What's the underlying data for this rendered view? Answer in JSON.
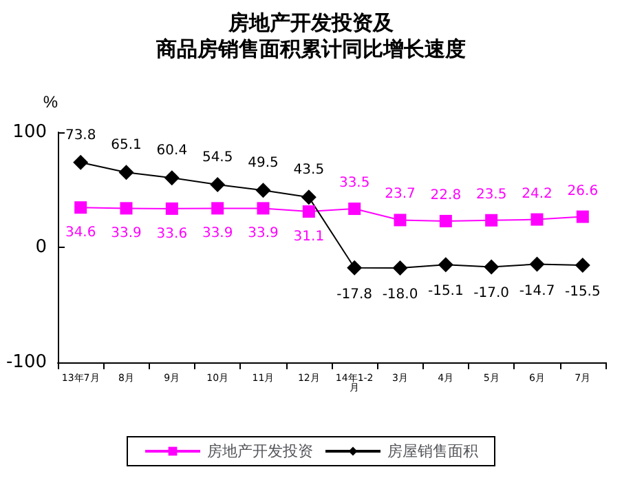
{
  "chart_data": {
    "type": "line",
    "title": "房地产开发投资及",
    "subtitle": "商品房销售面积累计同比增长速度",
    "ylabel": "%",
    "categories": [
      "13年7月",
      "8月",
      "9月",
      "10月",
      "11月",
      "12月",
      "14年1-2月",
      "3月",
      "4月",
      "5月",
      "6月",
      "7月"
    ],
    "series": [
      {
        "name": "房地产开发投资",
        "color": "#ff00ff",
        "marker": "square",
        "values": [
          34.6,
          33.9,
          33.6,
          33.9,
          33.9,
          31.1,
          33.5,
          23.7,
          22.8,
          23.5,
          24.2,
          26.6
        ],
        "value_labels": [
          "34.6",
          "33.9",
          "33.6",
          "33.9",
          "33.9",
          "31.1",
          "33.5",
          "23.7",
          "22.8",
          "23.5",
          "24.2",
          "26.6"
        ]
      },
      {
        "name": "房屋销售面积",
        "color": "#000000",
        "marker": "diamond",
        "values": [
          73.8,
          65.1,
          60.4,
          54.5,
          49.5,
          43.5,
          -17.8,
          -18.0,
          -15.1,
          -17.0,
          -14.7,
          -15.5
        ],
        "value_labels": [
          "73.8",
          "65.1",
          "60.4",
          "54.5",
          "49.5",
          "43.5",
          "-17.8",
          "-18.0",
          "-15.1",
          "-17.0",
          "-14.7",
          "-15.5"
        ]
      }
    ],
    "ylim": [
      -100,
      100
    ],
    "yticks": [
      -100,
      0,
      100
    ],
    "grid": false,
    "legend": "bottom"
  }
}
